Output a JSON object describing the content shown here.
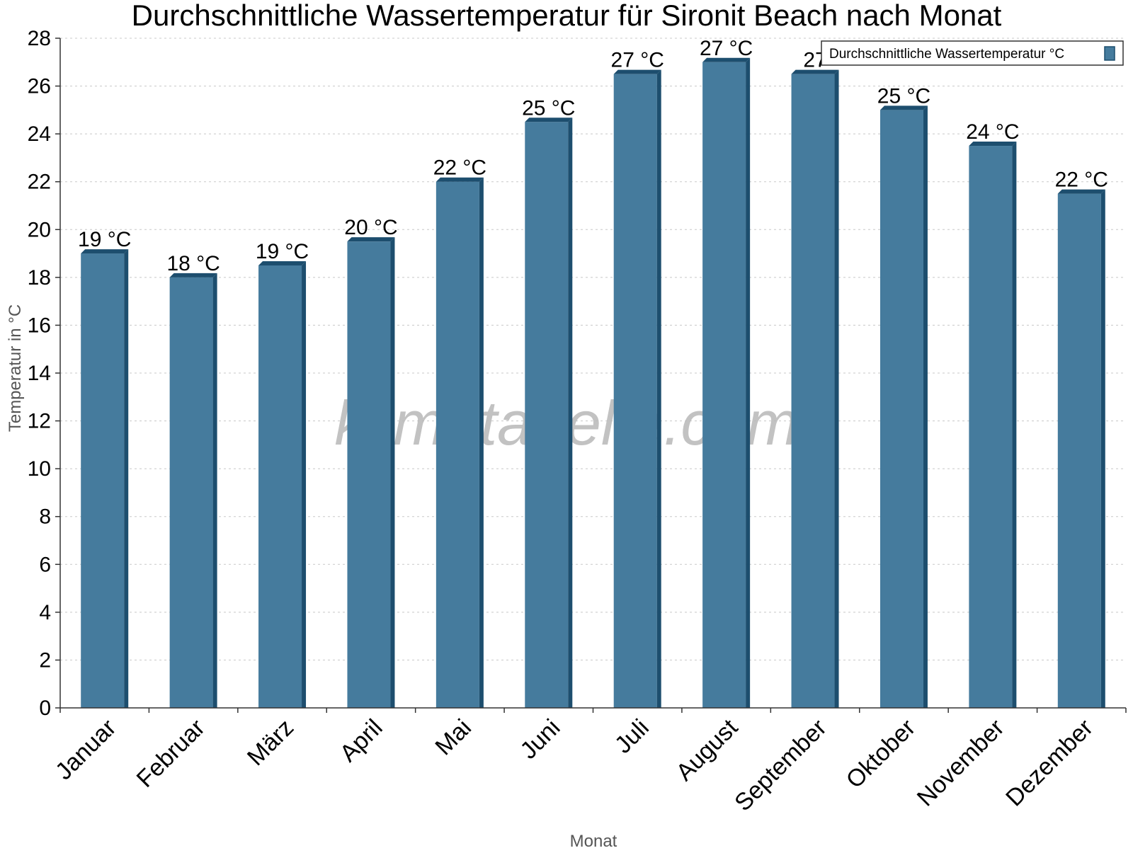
{
  "chart_data": {
    "type": "bar",
    "title": "Durchschnittliche Wassertemperatur für Sironit Beach nach Monat",
    "xlabel": "Monat",
    "ylabel": "Temperatur in °C",
    "ylim": [
      0,
      28
    ],
    "yticks": [
      "0",
      "2",
      "4",
      "6",
      "8",
      "10",
      "12",
      "14",
      "16",
      "18",
      "20",
      "22",
      "24",
      "26",
      "28"
    ],
    "grid": true,
    "legend_position": "top-right",
    "categories": [
      "Januar",
      "Februar",
      "März",
      "April",
      "Mai",
      "Juni",
      "Juli",
      "August",
      "September",
      "Oktober",
      "November",
      "Dezember"
    ],
    "series": [
      {
        "name": "Durchschnittliche Wassertemperatur °C",
        "values": [
          19,
          18,
          18.5,
          19.5,
          22,
          24.5,
          26.5,
          27,
          26.5,
          25,
          23.5,
          21.5
        ],
        "labels": [
          "19 °C",
          "18 °C",
          "19 °C",
          "20 °C",
          "22 °C",
          "25 °C",
          "27 °C",
          "27 °C",
          "27",
          "25 °C",
          "24 °C",
          "22 °C"
        ]
      }
    ],
    "colors": {
      "bar": "#457b9d",
      "bar_dark": "#1d4e6e",
      "grid": "#c8c8c8"
    },
    "watermark": "klimatabelle.com"
  }
}
